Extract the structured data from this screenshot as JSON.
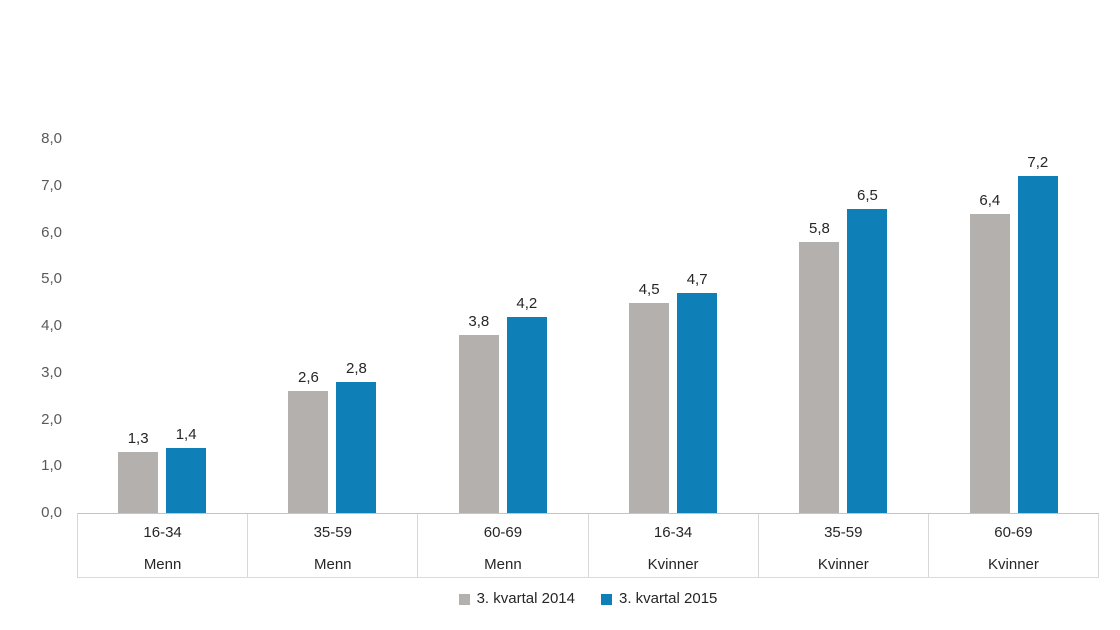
{
  "chart_data": {
    "type": "bar",
    "title": "",
    "xlabel": "",
    "ylabel": "",
    "grid": false,
    "legend_position": "bottom-center",
    "y_axis": {
      "min": 0,
      "max": 8,
      "ticks": [
        "8,0",
        "7,0",
        "6,0",
        "5,0",
        "4,0",
        "3,0",
        "2,0",
        "1,0",
        "0,0"
      ]
    },
    "group_labels": [
      {
        "age": "16-34",
        "gender": "Menn"
      },
      {
        "age": "35-59",
        "gender": "Menn"
      },
      {
        "age": "60-69",
        "gender": "Menn"
      },
      {
        "age": "16-34",
        "gender": "Kvinner"
      },
      {
        "age": "35-59",
        "gender": "Kvinner"
      },
      {
        "age": "60-69",
        "gender": "Kvinner"
      }
    ],
    "series": [
      {
        "name": "3. kvartal 2014",
        "color": "#b4b0ad",
        "values": [
          1.3,
          2.6,
          3.8,
          4.5,
          5.8,
          6.4
        ],
        "labels": [
          "1,3",
          "2,6",
          "3,8",
          "4,5",
          "5,8",
          "6,4"
        ]
      },
      {
        "name": "3. kvartal 2015",
        "color": "#0e80b7",
        "values": [
          1.4,
          2.8,
          4.2,
          4.7,
          6.5,
          7.2
        ],
        "labels": [
          "1,4",
          "2,8",
          "4,2",
          "4,7",
          "6,5",
          "7,2"
        ]
      }
    ]
  }
}
